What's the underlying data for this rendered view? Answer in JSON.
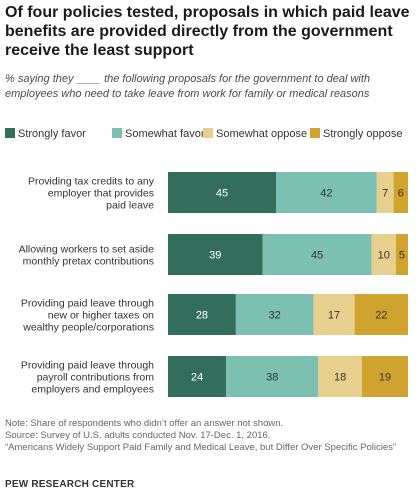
{
  "title": "Of four policies tested, proposals in which paid leave benefits are provided directly from the government receive the least support",
  "subtitle": "% saying they ____ the following proposals for the government to deal with employees who need to take leave from work for family or medical reasons",
  "colors": {
    "strongly_favor": "#336e5d",
    "somewhat_favor": "#7bc0b0",
    "somewhat_oppose": "#e7d08e",
    "strongly_oppose": "#cfa32e"
  },
  "chart_data": {
    "type": "bar",
    "orientation": "horizontal",
    "stacked": true,
    "categories": [
      [
        "Providing tax credits to any",
        "employer that provides",
        "paid leave"
      ],
      [
        "Allowing workers to set aside",
        "monthly pretax contributions"
      ],
      [
        "Providing paid leave through",
        "new or higher taxes on",
        "wealthy people/corporations"
      ],
      [
        "Providing paid leave through",
        "payroll contributions from",
        "employers and employees"
      ]
    ],
    "series": [
      {
        "name": "Strongly favor",
        "color": "#336e5d",
        "values": [
          45,
          39,
          28,
          24
        ]
      },
      {
        "name": "Somewhat favor",
        "color": "#7bc0b0",
        "values": [
          42,
          45,
          32,
          38
        ]
      },
      {
        "name": "Somewhat oppose",
        "color": "#e7d08e",
        "values": [
          7,
          10,
          17,
          18
        ]
      },
      {
        "name": "Strongly oppose",
        "color": "#cfa32e",
        "values": [
          6,
          5,
          22,
          19
        ]
      }
    ],
    "legend_position": "top",
    "grid": false
  },
  "notes": [
    "Note: Share of respondents who didn’t offer an answer not shown.",
    "Source: Survey of U.S. adults conducted Nov. 17-Dec. 1, 2016.",
    "“Americans Widely Support Paid Family and Medical Leave, but Differ Over Specific Policies”"
  ],
  "brand": "PEW RESEARCH CENTER"
}
